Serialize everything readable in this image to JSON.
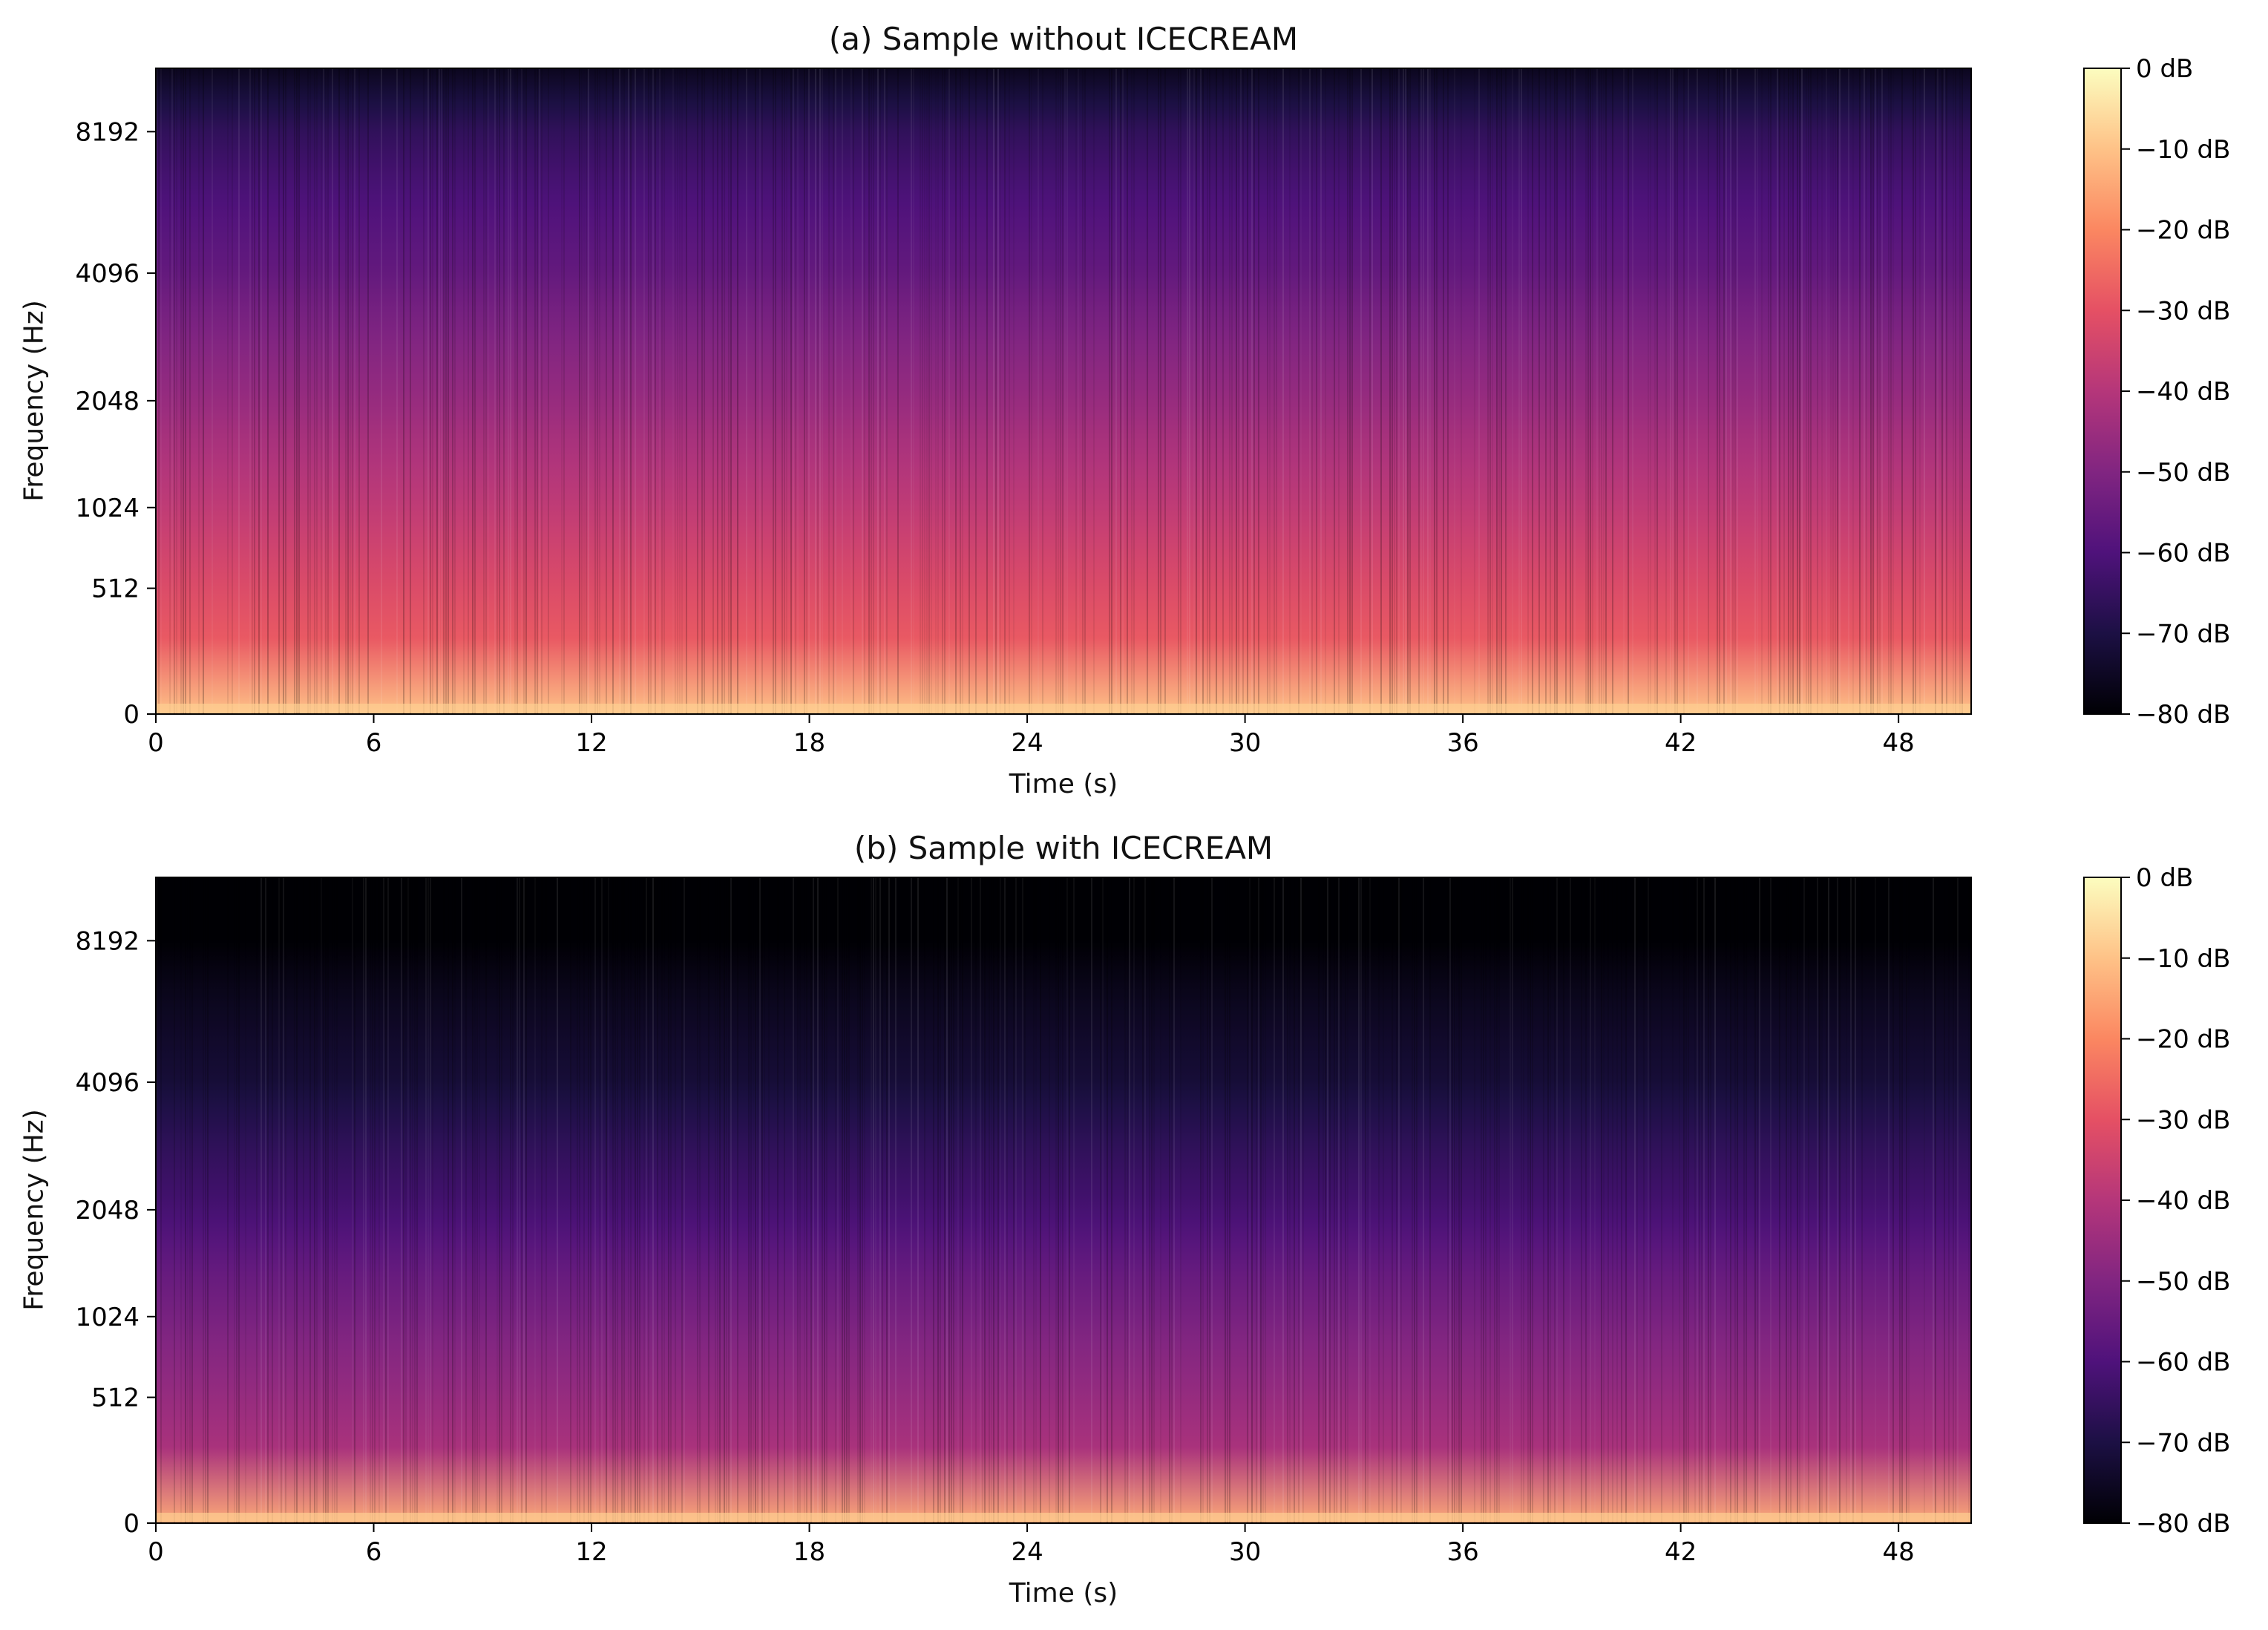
{
  "charts": [
    {
      "id": "a",
      "title": "(a) Sample without ICECREAM",
      "ylabel": "Frequency (Hz)",
      "xlabel": "Time (s)"
    },
    {
      "id": "b",
      "title": "(b) Sample with ICECREAM",
      "ylabel": "Frequency (Hz)",
      "xlabel": "Time (s)"
    }
  ],
  "chart_data": [
    {
      "type": "heatmap",
      "title": "(a) Sample without ICECREAM",
      "xlabel": "Time (s)",
      "ylabel": "Frequency (Hz)",
      "x_ticks": [
        "0",
        "6",
        "12",
        "18",
        "24",
        "30",
        "36",
        "42",
        "48"
      ],
      "y_ticks": [
        "0",
        "512",
        "1024",
        "2048",
        "4096",
        "8192"
      ],
      "y_scale": "log-like (mel)",
      "xlim": [
        0,
        50
      ],
      "colorbar": {
        "ticks": [
          "0 dB",
          "−10 dB",
          "−20 dB",
          "−30 dB",
          "−40 dB",
          "−50 dB",
          "−60 dB",
          "−70 dB",
          "−80 dB"
        ],
        "range_db": [
          -80,
          0
        ],
        "colormap": "magma"
      },
      "profile_db": {
        "freq_hz": [
          0,
          128,
          256,
          512,
          1024,
          2048,
          4096,
          8192,
          11025
        ],
        "level_db": [
          -10,
          -24,
          -28,
          -32,
          -38,
          -46,
          -56,
          -66,
          -76
        ]
      }
    },
    {
      "type": "heatmap",
      "title": "(b) Sample with ICECREAM",
      "xlabel": "Time (s)",
      "ylabel": "Frequency (Hz)",
      "x_ticks": [
        "0",
        "6",
        "12",
        "18",
        "24",
        "30",
        "36",
        "42",
        "48"
      ],
      "y_ticks": [
        "0",
        "512",
        "1024",
        "2048",
        "4096",
        "8192"
      ],
      "y_scale": "log-like (mel)",
      "xlim": [
        0,
        50
      ],
      "colorbar": {
        "ticks": [
          "0 dB",
          "−10 dB",
          "−20 dB",
          "−30 dB",
          "−40 dB",
          "−50 dB",
          "−60 dB",
          "−70 dB",
          "−80 dB"
        ],
        "range_db": [
          -80,
          0
        ],
        "colormap": "magma"
      },
      "profile_db": {
        "freq_hz": [
          0,
          128,
          256,
          512,
          1024,
          2048,
          4096,
          8192,
          11025
        ],
        "level_db": [
          -14,
          -34,
          -42,
          -46,
          -52,
          -62,
          -72,
          -80,
          -80
        ]
      }
    }
  ],
  "colors": {
    "magma": [
      "#000004",
      "#1c1044",
      "#4f127b",
      "#812581",
      "#b5367a",
      "#e55064",
      "#fb8761",
      "#fec287",
      "#fcfdbf"
    ]
  }
}
